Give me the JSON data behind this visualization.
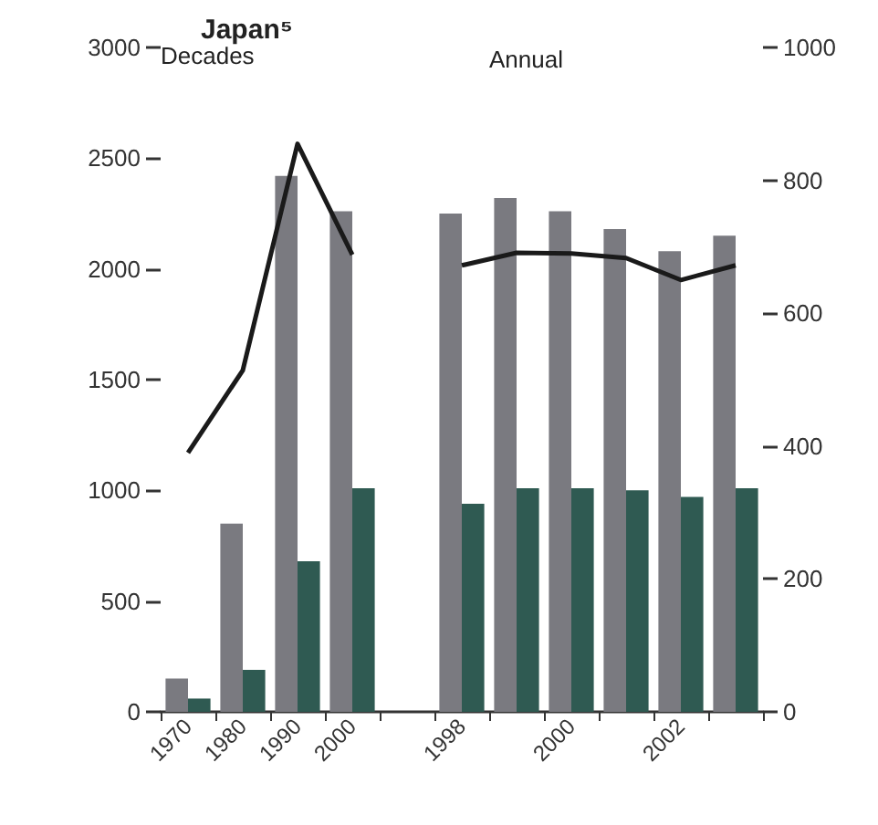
{
  "chart_data": {
    "type": "bar",
    "title": "Japan⁵",
    "annotations": [
      "Decades",
      "Annual"
    ],
    "categories": [
      "1970",
      "1980",
      "1990",
      "2000",
      null,
      "1998",
      null,
      "2000",
      null,
      "2002",
      null
    ],
    "series": [
      {
        "color": "#7a7a80",
        "values": [
          150,
          850,
          2420,
          2260,
          null,
          2250,
          2320,
          2260,
          2180,
          2080,
          2150
        ]
      },
      {
        "color": "#2f5a52",
        "values": [
          60,
          190,
          680,
          1010,
          null,
          940,
          1010,
          1010,
          1000,
          970,
          1010
        ]
      },
      {
        "type": "line",
        "axis": "y2",
        "color": "#1a1a1a",
        "values": [
          390,
          514,
          855,
          688,
          null,
          672,
          691,
          690,
          683,
          650,
          672
        ]
      }
    ],
    "ylim": [
      0,
      3000
    ],
    "yticks": [
      0,
      500,
      1000,
      1500,
      2000,
      2500,
      3000
    ],
    "y2lim": [
      0,
      1000
    ],
    "y2ticks": [
      0,
      200,
      400,
      600,
      800,
      1000
    ],
    "grid": false,
    "marker": "none",
    "line_style": "solid"
  }
}
